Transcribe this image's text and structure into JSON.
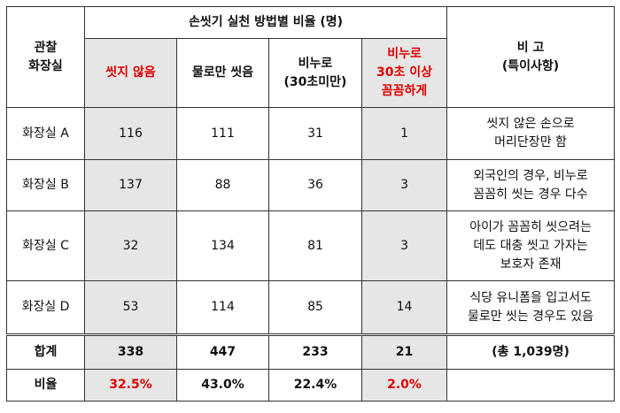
{
  "header": {
    "observe_col": "관찰\n화장실",
    "group_title": "손씻기 실천 방법별 비율 (명)",
    "col_no_wash": "씻지 않음",
    "col_water_only": "물로만 씻음",
    "col_soap_short": "비누로\n(30초미만)",
    "col_soap_long": "비누로\n30초 이상\n꼼꼼하게",
    "col_note": "비 고\n(특이사항)"
  },
  "rows": [
    {
      "name": "화장실 A",
      "no_wash": "116",
      "water_only": "111",
      "soap_short": "31",
      "soap_long": "1",
      "note": "씻지 않은 손으로\n머리단장만 함"
    },
    {
      "name": "화장실 B",
      "no_wash": "137",
      "water_only": "88",
      "soap_short": "36",
      "soap_long": "3",
      "note": "외국인의 경우, 비누로\n꼼꼼히 씻는 경우 다수"
    },
    {
      "name": "화장실 C",
      "no_wash": "32",
      "water_only": "134",
      "soap_short": "81",
      "soap_long": "3",
      "note": "아이가 꼼꼼히 씻으려는\n데도 대충 씻고 가자는\n보호자 존재"
    },
    {
      "name": "화장실 D",
      "no_wash": "53",
      "water_only": "114",
      "soap_short": "85",
      "soap_long": "14",
      "note": "식당 유니폼을 입고서도\n물로만 씻는 경우도 있음"
    }
  ],
  "total": {
    "label": "합계",
    "no_wash": "338",
    "water_only": "447",
    "soap_short": "233",
    "soap_long": "21",
    "note": "(총 1,039명)"
  },
  "ratio": {
    "label": "비율",
    "no_wash": "32.5%",
    "water_only": "43.0%",
    "soap_short": "22.4%",
    "soap_long": "2.0%",
    "note": ""
  },
  "colors": {
    "highlight_red": "#e00000",
    "shade_gray": "#e6e6e6"
  }
}
